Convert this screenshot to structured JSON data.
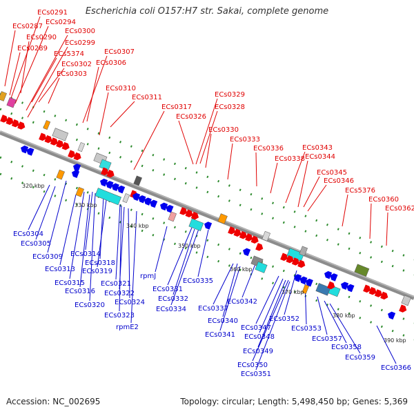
{
  "title": "Escherichia coli O157:H7 str. Sakai, complete genome",
  "footer": {
    "accession": "Accession: NC_002695",
    "summary": "Topology: circular; Length: 5,498,450 bp; Genes: 5,369"
  },
  "colors": {
    "forward_label": "#e00000",
    "reverse_label": "#0000cc",
    "backbone": "#8c8c8c",
    "tick": "#2e8b2e"
  },
  "kbp_ticks": [
    "320 kbp",
    "330 kbp",
    "340 kbp",
    "350 kbp",
    "360 kbp",
    "370 kbp",
    "380 kbp",
    "390 kbp"
  ],
  "forward_labels": [
    "ECs0291",
    "ECs0294",
    "ECs0287",
    "ECs0290",
    "ECs0300",
    "ECs0289",
    "ECs0299",
    "ECs5374",
    "ECs0307",
    "ECs0302",
    "ECs0306",
    "ECs0303",
    "ECs0310",
    "ECs0311",
    "ECs0317",
    "ECs0329",
    "ECs0328",
    "ECs0326",
    "ECs0330",
    "ECs0333",
    "ECs0336",
    "ECs0343",
    "ECs0338",
    "ECs0344",
    "ECs0345",
    "ECs0346",
    "ECs5376",
    "ECs0360",
    "ECs0362"
  ],
  "reverse_labels": [
    "ECs0304",
    "ECs0305",
    "ECs0309",
    "ECs0313",
    "ECs0314",
    "ECs0318",
    "ECs0319",
    "ECs0315",
    "ECs0316",
    "ECs0321",
    "rpmJ",
    "ECs0322",
    "ECs0320",
    "ECs0324",
    "ECs0323",
    "rpmE2",
    "ECs0331",
    "ECs0332",
    "ECs0335",
    "ECs0334",
    "ECs0337",
    "ECs0342",
    "ECs0340",
    "ECs0341",
    "ECs0347",
    "ECs0352",
    "ECs0348",
    "ECs0353",
    "ECs0349",
    "ECs0357",
    "ECs0358",
    "ECs0359",
    "ECs0350",
    "ECs0351",
    "ECs0366"
  ]
}
